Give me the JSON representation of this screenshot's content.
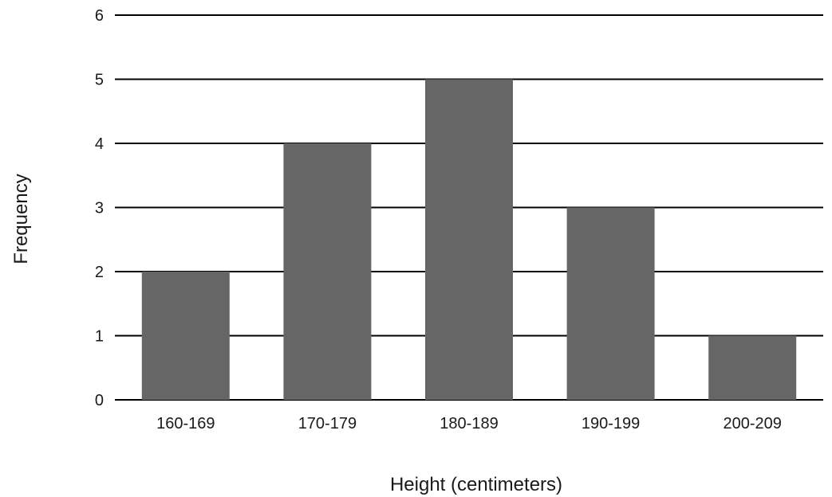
{
  "chart_data": {
    "type": "bar",
    "categories": [
      "160-169",
      "170-179",
      "180-189",
      "190-199",
      "200-209"
    ],
    "values": [
      2,
      4,
      5,
      3,
      1
    ],
    "title": "",
    "xlabel": "Height (centimeters)",
    "ylabel": "Frequency",
    "ylim": [
      0,
      6
    ],
    "yticks": [
      "0",
      "1",
      "2",
      "3",
      "4",
      "5",
      "6"
    ],
    "grid": true,
    "bar_color": "#666666",
    "grid_color": "#000000"
  }
}
